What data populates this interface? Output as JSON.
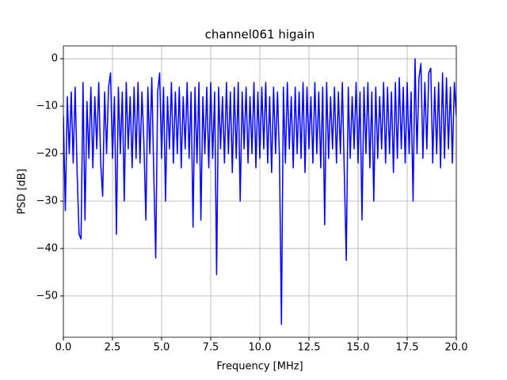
{
  "chart_data": {
    "type": "line",
    "title": "channel061 higain",
    "x_label": "Frequency [MHz]",
    "y_label": "PSD [dB]",
    "xlim": [
      0,
      20
    ],
    "ylim": [
      -58.7,
      2.7
    ],
    "grid": true,
    "xticks": [
      {
        "value": 0,
        "label": "0.0"
      },
      2.5,
      {
        "value": 5,
        "label": "5.0"
      },
      7.5,
      {
        "value": 10,
        "label": "10.0"
      },
      12.5,
      {
        "value": 15,
        "label": "15.0"
      },
      17.5,
      {
        "value": 20,
        "label": "20.0"
      }
    ],
    "yticks": [
      {
        "value": -50,
        "label": "−50"
      },
      {
        "value": -40,
        "label": "−40"
      },
      {
        "value": -30,
        "label": "−30"
      },
      {
        "value": -20,
        "label": "−20"
      },
      {
        "value": -10,
        "label": "−10"
      },
      0
    ],
    "x": [
      0,
      0.1,
      0.2,
      0.3,
      0.4,
      0.5,
      0.6,
      0.7,
      0.8,
      0.9,
      1,
      1.1,
      1.2,
      1.3,
      1.4,
      1.5,
      1.6,
      1.7,
      1.8,
      1.9,
      2,
      2.1,
      2.2,
      2.3,
      2.4,
      2.5,
      2.6,
      2.7,
      2.8,
      2.9,
      3,
      3.1,
      3.2,
      3.3,
      3.4,
      3.5,
      3.6,
      3.7,
      3.8,
      3.9,
      4,
      4.1,
      4.2,
      4.3,
      4.4,
      4.5,
      4.6,
      4.7,
      4.8,
      4.9,
      5,
      5.1,
      5.2,
      5.3,
      5.4,
      5.5,
      5.6,
      5.7,
      5.8,
      5.9,
      6,
      6.1,
      6.2,
      6.3,
      6.4,
      6.5,
      6.6,
      6.7,
      6.8,
      6.9,
      7,
      7.1,
      7.2,
      7.3,
      7.4,
      7.5,
      7.6,
      7.7,
      7.8,
      7.9,
      8,
      8.1,
      8.2,
      8.3,
      8.4,
      8.5,
      8.6,
      8.7,
      8.8,
      8.9,
      9,
      9.1,
      9.2,
      9.3,
      9.4,
      9.5,
      9.6,
      9.7,
      9.8,
      9.9,
      10,
      10.1,
      10.2,
      10.3,
      10.4,
      10.5,
      10.6,
      10.7,
      10.8,
      10.9,
      11,
      11.1,
      11.2,
      11.3,
      11.4,
      11.5,
      11.6,
      11.7,
      11.8,
      11.9,
      12,
      12.1,
      12.2,
      12.3,
      12.4,
      12.5,
      12.6,
      12.7,
      12.8,
      12.9,
      13,
      13.1,
      13.2,
      13.3,
      13.4,
      13.5,
      13.6,
      13.7,
      13.8,
      13.9,
      14,
      14.1,
      14.2,
      14.3,
      14.4,
      14.5,
      14.6,
      14.7,
      14.8,
      14.9,
      15,
      15.1,
      15.2,
      15.3,
      15.4,
      15.5,
      15.6,
      15.7,
      15.8,
      15.9,
      16,
      16.1,
      16.2,
      16.3,
      16.4,
      16.5,
      16.6,
      16.7,
      16.8,
      16.9,
      17,
      17.1,
      17.2,
      17.3,
      17.4,
      17.5,
      17.6,
      17.7,
      17.8,
      17.9,
      18,
      18.1,
      18.2,
      18.3,
      18.4,
      18.5,
      18.6,
      18.7,
      18.8,
      18.9,
      19,
      19.1,
      19.2,
      19.3,
      19.4,
      19.5,
      19.6,
      19.7,
      19.8,
      19.9,
      20
    ],
    "series": [
      {
        "color": "#0000ff",
        "values": [
          -12,
          -32,
          -8,
          -20,
          -7,
          -22,
          -6,
          -24,
          -37,
          -38,
          -5,
          -34,
          -9,
          -21,
          -6,
          -23,
          -8,
          -19,
          -5,
          -22,
          -29,
          -7,
          -20,
          -6,
          -3,
          -21,
          -8,
          -37,
          -6,
          -20,
          -7,
          -30,
          -5,
          -19,
          -8,
          -23,
          -6,
          -21,
          -5,
          -22,
          -7,
          -18,
          -34,
          -6,
          -20,
          -4,
          -24,
          -42,
          -7,
          -3,
          -21,
          -6,
          -30,
          -8,
          -19,
          -5,
          -22,
          -7,
          -20,
          -6,
          -23,
          -8,
          -19,
          -5,
          -21,
          -7,
          -35.5,
          -6,
          -22,
          -5,
          -34,
          -8,
          -20,
          -6,
          -23,
          -5,
          -21,
          -7,
          -45.5,
          -6,
          -19,
          -8,
          -22,
          -5,
          -20,
          -7,
          -24,
          -6,
          -21,
          -5,
          -30,
          -7,
          -19,
          -6,
          -22,
          -8,
          -20,
          -5,
          -23,
          -7,
          -21,
          -6,
          -19,
          -5,
          -22,
          -8,
          -24,
          -6,
          -20,
          -7,
          -21,
          -56,
          -6,
          -22,
          -5,
          -19,
          -8,
          -23,
          -6,
          -20,
          -7,
          -21,
          -5,
          -24,
          -6,
          -19,
          -8,
          -22,
          -5,
          -20,
          -7,
          -23,
          -6,
          -35,
          -5,
          -21,
          -8,
          -19,
          -6,
          -22,
          -7,
          -20,
          -5,
          -24,
          -42.5,
          -6,
          -21,
          -8,
          -19,
          -5,
          -22,
          -7,
          -34,
          -6,
          -20,
          -5,
          -23,
          -7,
          -30,
          -6,
          -21,
          -8,
          -19,
          -5,
          -22,
          -6,
          -20,
          -7,
          -24,
          -5,
          -21,
          -4,
          -19,
          -6,
          -22,
          -5,
          -20,
          -7,
          -30,
          0,
          -20,
          -4,
          -1,
          -21,
          -5,
          -19,
          -3,
          -2,
          -22,
          -6,
          -20,
          -5,
          -23,
          -3,
          -21,
          -4,
          -19,
          -6,
          -22,
          -5,
          -12
        ]
      }
    ]
  }
}
